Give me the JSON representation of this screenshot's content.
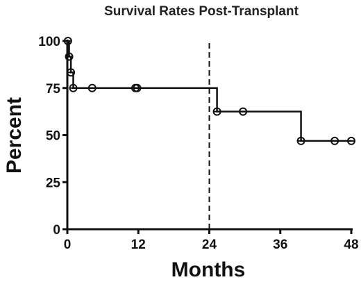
{
  "chart_data": {
    "type": "line",
    "title": "Survival Rates Post-Transplant",
    "xlabel": "Months",
    "ylabel": "Percent",
    "xlim": [
      0,
      48
    ],
    "ylim": [
      0,
      100
    ],
    "xticks": [
      0,
      12,
      24,
      36,
      48
    ],
    "yticks": [
      0,
      25,
      50,
      75,
      100
    ],
    "grid": false,
    "reference_line": {
      "x": 24,
      "style": "dashed"
    },
    "step_points": [
      {
        "x": 0,
        "y": 100
      },
      {
        "x": 0.3,
        "y": 91.7
      },
      {
        "x": 0.6,
        "y": 83.3
      },
      {
        "x": 1.0,
        "y": 75.0
      },
      {
        "x": 25.3,
        "y": 62.5
      },
      {
        "x": 39.5,
        "y": 46.9
      },
      {
        "x": 48,
        "y": 46.9
      }
    ],
    "markers": [
      {
        "x": 0.1,
        "y": 100
      },
      {
        "x": 0.3,
        "y": 91.7
      },
      {
        "x": 0.6,
        "y": 83.3
      },
      {
        "x": 1.0,
        "y": 75.0
      },
      {
        "x": 4.2,
        "y": 75.0
      },
      {
        "x": 11.5,
        "y": 75.0
      },
      {
        "x": 11.8,
        "y": 75.0
      },
      {
        "x": 25.3,
        "y": 62.5
      },
      {
        "x": 29.7,
        "y": 62.5
      },
      {
        "x": 39.5,
        "y": 46.9
      },
      {
        "x": 45.2,
        "y": 46.9
      },
      {
        "x": 48.0,
        "y": 46.9
      }
    ]
  }
}
